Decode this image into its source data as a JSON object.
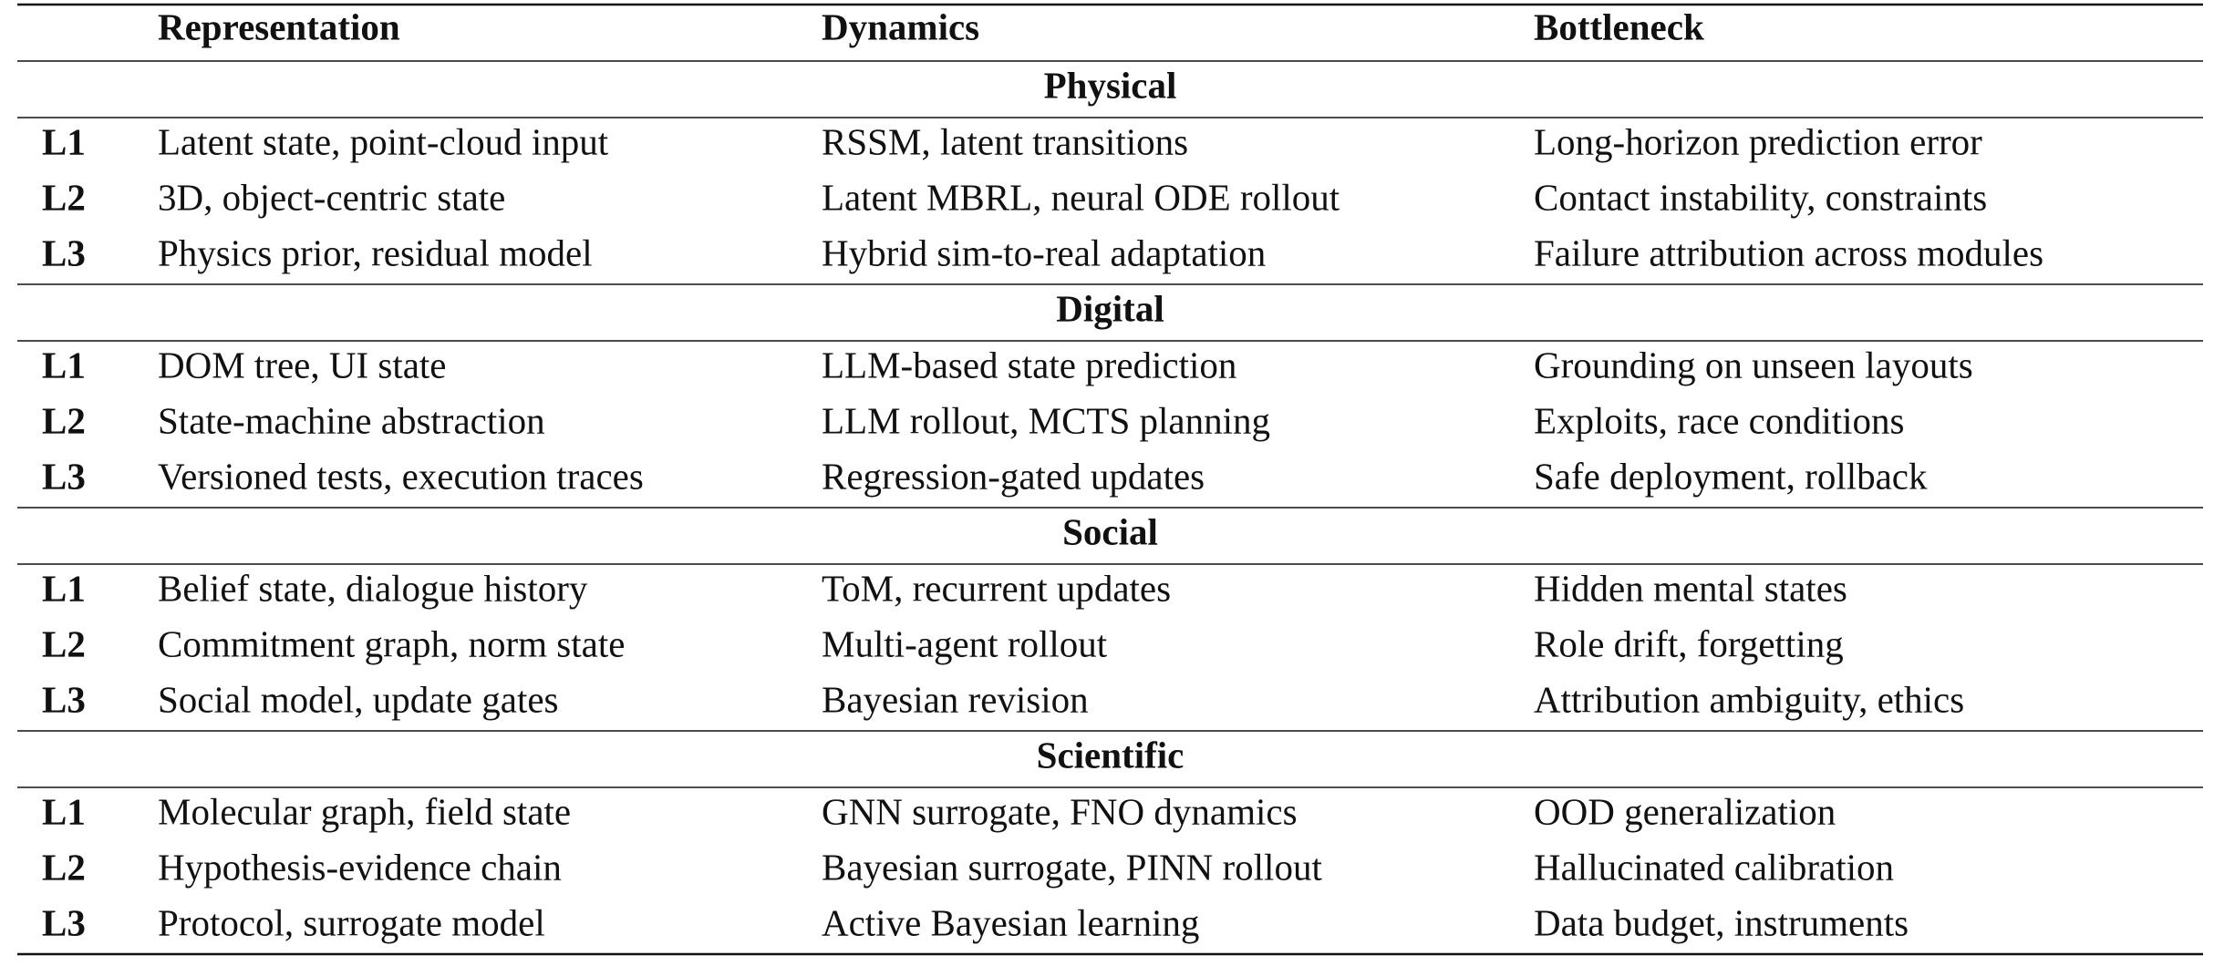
{
  "table": {
    "columns": [
      "Representation",
      "Dynamics",
      "Bottleneck"
    ],
    "sections": [
      {
        "title": "Physical",
        "rows": [
          [
            "L1",
            "Latent state, point-cloud input",
            "RSSM, latent transitions",
            "Long-horizon prediction error"
          ],
          [
            "L2",
            "3D, object-centric state",
            "Latent MBRL, neural ODE rollout",
            "Contact instability, constraints"
          ],
          [
            "L3",
            "Physics prior, residual model",
            "Hybrid sim-to-real adaptation",
            "Failure attribution across modules"
          ]
        ]
      },
      {
        "title": "Digital",
        "rows": [
          [
            "L1",
            "DOM tree, UI state",
            "LLM-based state prediction",
            "Grounding on unseen layouts"
          ],
          [
            "L2",
            "State-machine abstraction",
            "LLM rollout, MCTS planning",
            "Exploits, race conditions"
          ],
          [
            "L3",
            "Versioned tests, execution traces",
            "Regression-gated updates",
            "Safe deployment, rollback"
          ]
        ]
      },
      {
        "title": "Social",
        "rows": [
          [
            "L1",
            "Belief state, dialogue history",
            "ToM, recurrent updates",
            "Hidden mental states"
          ],
          [
            "L2",
            "Commitment graph, norm state",
            "Multi-agent rollout",
            "Role drift, forgetting"
          ],
          [
            "L3",
            "Social model, update gates",
            "Bayesian revision",
            "Attribution ambiguity, ethics"
          ]
        ]
      },
      {
        "title": "Scientific",
        "rows": [
          [
            "L1",
            "Molecular graph, field state",
            "GNN surrogate, FNO dynamics",
            "OOD generalization"
          ],
          [
            "L2",
            "Hypothesis-evidence chain",
            "Bayesian surrogate, PINN rollout",
            "Hallucinated calibration"
          ],
          [
            "L3",
            "Protocol, surrogate model",
            "Active Bayesian learning",
            "Data budget, instruments"
          ]
        ]
      }
    ]
  }
}
